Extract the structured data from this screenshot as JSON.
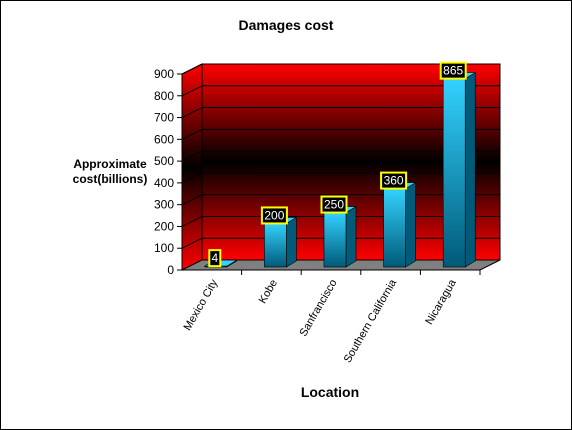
{
  "chart_data": {
    "type": "bar",
    "title": "Damages cost",
    "xlabel": "Location",
    "ylabel": "Approximate cost(billions)",
    "categories": [
      "Mexico City",
      "Kobe",
      "Sanfrancisco",
      "Southern California",
      "Nicaragua"
    ],
    "values": [
      4,
      200,
      250,
      360,
      865
    ],
    "data_labels": [
      "4",
      "200",
      "250",
      "360",
      "865"
    ],
    "yticks": [
      "0",
      "100",
      "200",
      "300",
      "400",
      "500",
      "600",
      "700",
      "800",
      "900"
    ],
    "ylim": [
      0,
      900
    ],
    "grid": true,
    "legend": "none",
    "colors": {
      "back_wall": "#ff0000",
      "wall_center": "#000000",
      "floor": "#808080",
      "bar_light": "#33d2ff",
      "bar_dark": "#005a78",
      "label_box": "#000000",
      "label_border": "#ffff00",
      "label_text": "#ffffff"
    }
  }
}
